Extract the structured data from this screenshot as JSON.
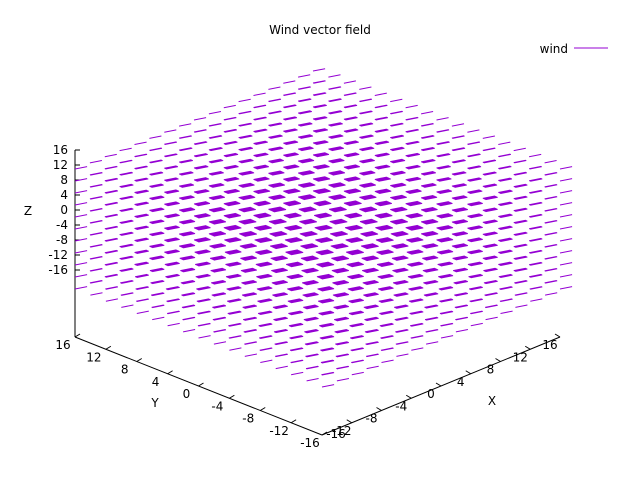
{
  "chart_data": {
    "type": "vector-field-3d",
    "title": "Wind vector field",
    "xlabel": "X",
    "ylabel": "Y",
    "zlabel": "Z",
    "xlim": [
      -16,
      16
    ],
    "ylim": [
      -16,
      16
    ],
    "zlim": [
      -16,
      16
    ],
    "x_ticks": [
      -12,
      -8,
      -4,
      0,
      4,
      8,
      12,
      16
    ],
    "x_tick_labels": [
      "-12",
      "-8",
      "-4",
      "0",
      "4",
      "8",
      "12",
      "16"
    ],
    "y_ticks": [
      -16,
      -12,
      -8,
      -4,
      0,
      4,
      8,
      12,
      16
    ],
    "y_tick_labels": [
      "-16",
      "-12",
      "-8",
      "-4",
      "0",
      "4",
      "8",
      "12",
      "16"
    ],
    "z_ticks": [
      16,
      12,
      8,
      4,
      0,
      -4,
      -8,
      -12,
      -16
    ],
    "z_tick_labels": [
      "16",
      "12",
      "8",
      "4",
      "0",
      "-4",
      "-8",
      "-12",
      "-16"
    ],
    "x_corner_label": "-16",
    "grid": false,
    "legend_position": "top-right",
    "series": [
      {
        "name": "wind",
        "color": "#9400d3",
        "x_range": [
          -16,
          16
        ],
        "y_range": [
          -16,
          16
        ],
        "z_range": [
          -16,
          16
        ],
        "x_count": 17,
        "y_count": 17,
        "z_count": 11,
        "vector": [
          1,
          -0.6,
          0.3
        ]
      }
    ]
  }
}
